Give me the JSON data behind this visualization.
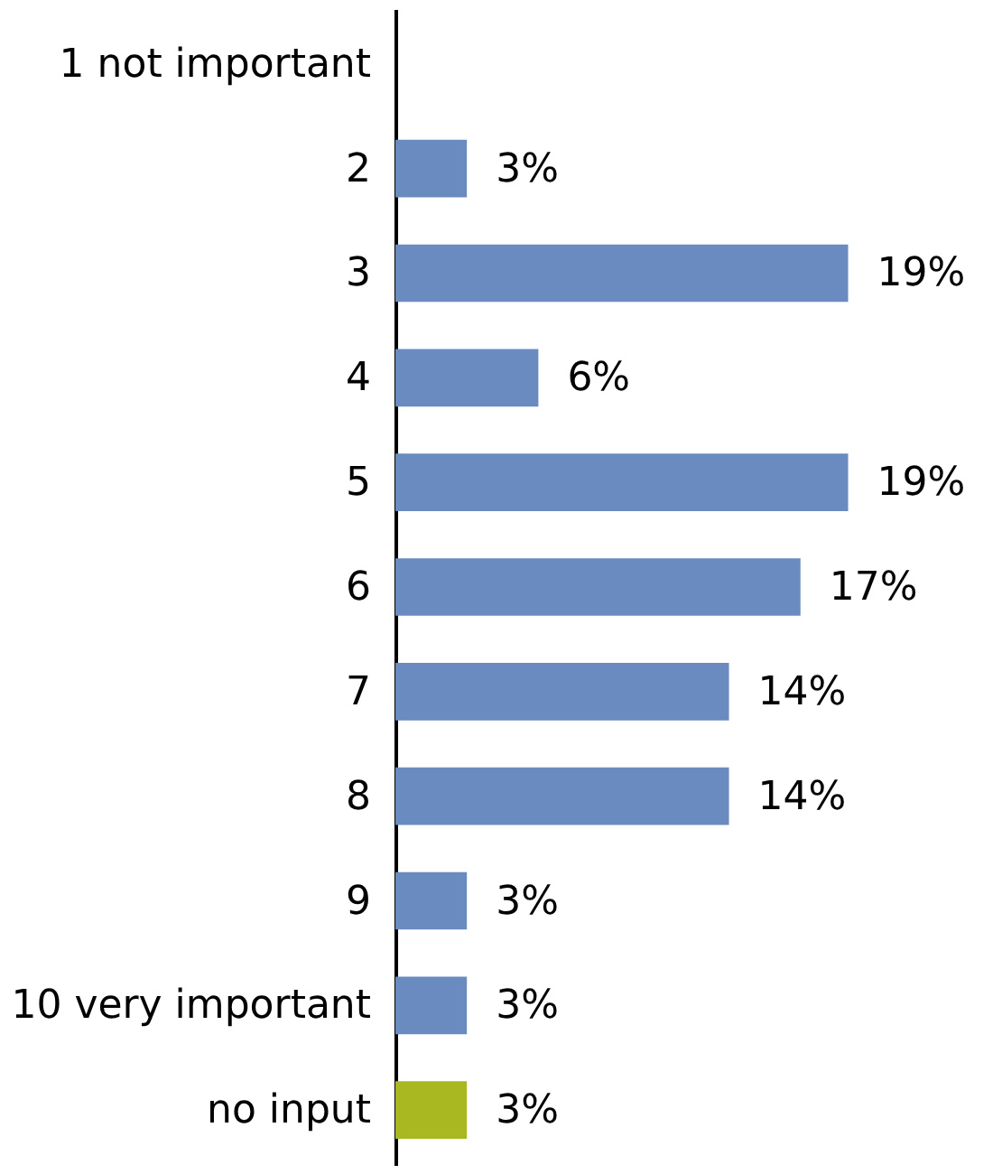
{
  "chart_data": {
    "type": "bar",
    "orientation": "horizontal",
    "categories": [
      "1 not important",
      "2",
      "3",
      "4",
      "5",
      "6",
      "7",
      "8",
      "9",
      "10 very important",
      "no input"
    ],
    "values": [
      null,
      3,
      19,
      6,
      19,
      17,
      14,
      14,
      3,
      3,
      3
    ],
    "colors": [
      "#6a8bbf",
      "#6a8bbf",
      "#6a8bbf",
      "#6a8bbf",
      "#6a8bbf",
      "#6a8bbf",
      "#6a8bbf",
      "#6a8bbf",
      "#6a8bbf",
      "#6a8bbf",
      "#a9b820"
    ],
    "value_labels": [
      null,
      "3%",
      "19%",
      "6%",
      "19%",
      "17%",
      "14%",
      "14%",
      "3%",
      "3%",
      "3%"
    ]
  }
}
